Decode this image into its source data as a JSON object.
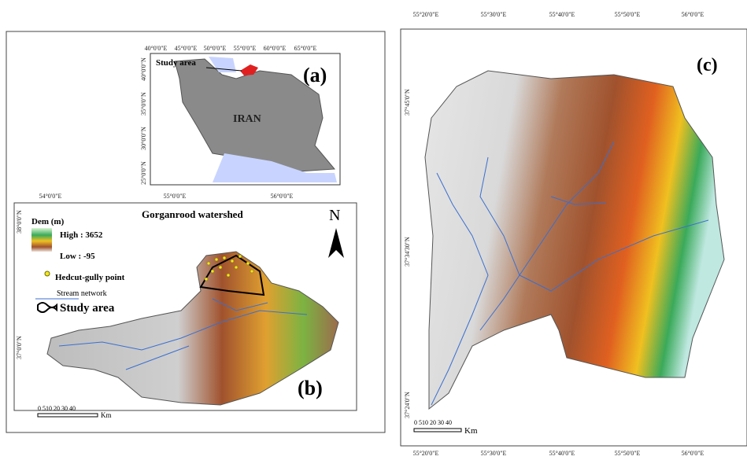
{
  "panel_a": {
    "label": "(a)",
    "top_ticks": [
      "40°0'0\"E",
      "45°0'0\"E",
      "50°0'0\"E",
      "55°0'0\"E",
      "60°0'0\"E",
      "65°0'0\"E"
    ],
    "left_ticks": [
      "40°0'0\"N",
      "35°0'0\"N",
      "30°0'0\"N",
      "25°0'0\"N"
    ],
    "study_area_label": "Study area",
    "country_label": "IRAN"
  },
  "panel_b": {
    "label": "(b)",
    "top_ticks": [
      "54°0'0\"E",
      "55°0'0\"E",
      "56°0'0\"E"
    ],
    "left_ticks": [
      "38°0'0\"N",
      "37°0'0\"N"
    ],
    "title": "Gorganrood watershed",
    "legend": {
      "dem_title": "Dem (m)",
      "high": "High : 3652",
      "low": "Low : -95",
      "gully": "Hedcut-gully point",
      "stream": "Stream network",
      "study_area": "Study area"
    },
    "north": "N",
    "scale": "0 510 20 30 40",
    "scale_unit": "Km"
  },
  "panel_c": {
    "label": "(c)",
    "top_ticks": [
      "55°20'0\"E",
      "55°30'0\"E",
      "55°40'0\"E",
      "55°50'0\"E",
      "56°0'0\"E"
    ],
    "bottom_ticks": [
      "55°20'0\"E",
      "55°30'0\"E",
      "55°40'0\"E",
      "55°50'0\"E",
      "56°0'0\"E"
    ],
    "left_ticks": [
      "37°45'0\"N",
      "37°34'30\"N",
      "37°24'0\"N"
    ],
    "scale": "0 510 20 30 40",
    "scale_unit": "Km"
  }
}
